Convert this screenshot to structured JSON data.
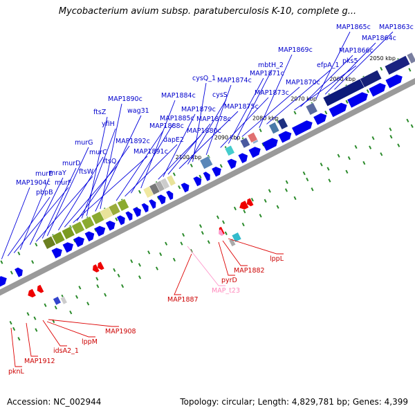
{
  "title": "Mycobacterium avium subsp. paratuberculosis K-10, complete g...",
  "accession": "Accession: NC_002944",
  "topology": "Topology: circular; Length: 4,829,781 bp; Genes: 4,399",
  "colors": {
    "forward_gene": "#0000ee",
    "reverse_gene": "#ee0000",
    "rna_gene": "#ff99cc",
    "backbone": "#888888",
    "tick_green": "#2a8a2a"
  },
  "kbp_ticks": [
    {
      "label": "2050 kbp"
    },
    {
      "label": "2060 kbp"
    },
    {
      "label": "2070 kbp"
    },
    {
      "label": "2080 kbp"
    },
    {
      "label": "2090 kbp"
    },
    {
      "label": "2100 kbp"
    }
  ],
  "forward_labels": [
    "MAP1863c",
    "MAP1864c",
    "MAP1865c",
    "MAP1866c",
    "pks5",
    "efpA_1",
    "MAP1869c",
    "MAP1870c",
    "mbtH_2",
    "MAP1871c",
    "MAP1873c",
    "MAP1874c",
    "cysQ_1",
    "cysS",
    "MAP1875c",
    "MAP1878c",
    "MAP1879c",
    "MAP1880c",
    "MAP1884c",
    "MAP1885c",
    "dapE2",
    "MAP1888c",
    "MAP1890c",
    "wag31",
    "ftsZ",
    "yfiH",
    "MAP1892c",
    "MAP1891c",
    "ftsQ",
    "murC",
    "murG",
    "murD",
    "ftsW",
    "mraY",
    "murE",
    "murF",
    "pbpB",
    "MAP1904c"
  ],
  "reverse_labels": [
    "lppL",
    "MAP1882",
    "pyrD",
    "MAP_t23",
    "MAP1887",
    "MAP1908",
    "lppM",
    "idsA2_1",
    "MAP1912",
    "pknL"
  ]
}
